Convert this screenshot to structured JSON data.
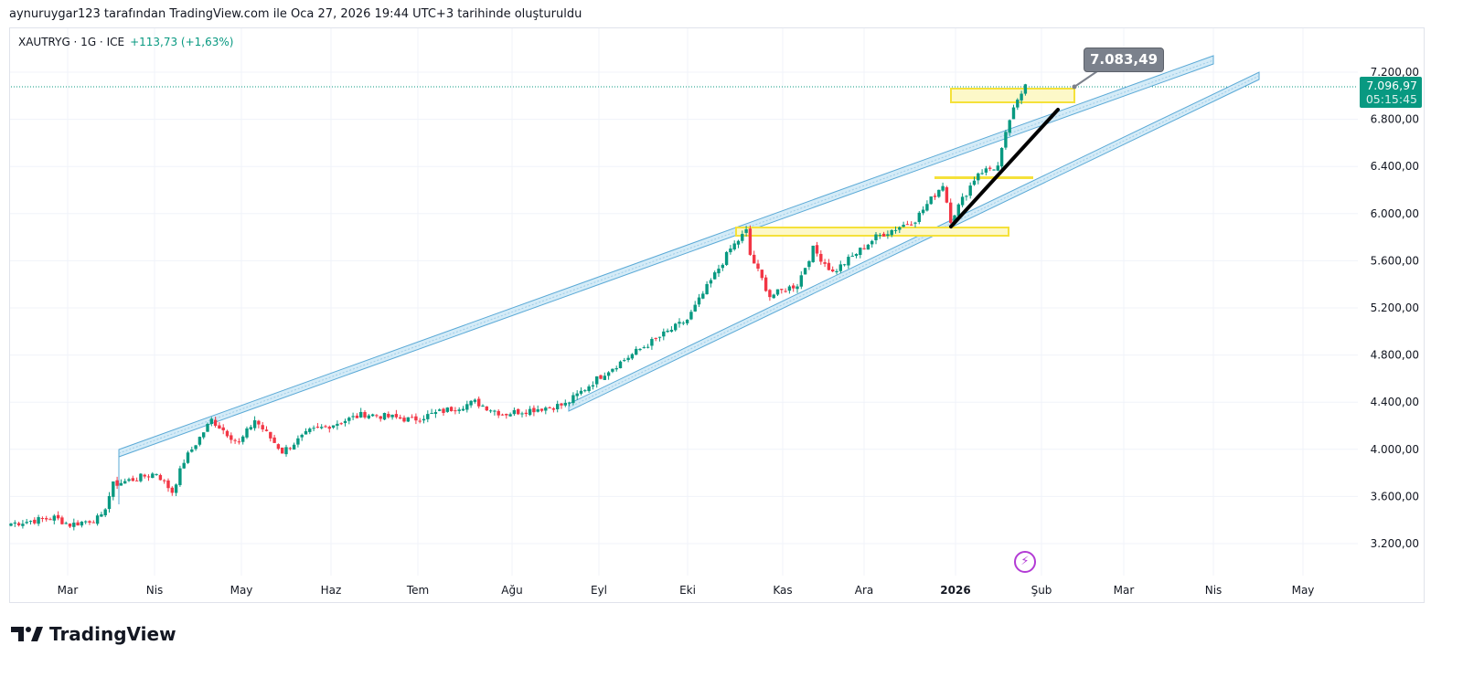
{
  "header": {
    "attribution": "aynuruygar123 tarafından TradingView.com ile Oca 27, 2026 19:44 UTC+3 tarihinde oluşturuldu"
  },
  "legend": {
    "symbol": "XAUTRYG · 1G · ICE",
    "change": "+113,73 (+1,63%)"
  },
  "price_tag": {
    "price": "7.096,97",
    "countdown": "05:15:45"
  },
  "note": {
    "text": "7.083,49"
  },
  "brand": {
    "name": "TradingView"
  },
  "colors": {
    "up": "#089981",
    "down": "#f23645",
    "channel": "#5aa9d6",
    "box": "#f5e13a",
    "trend": "#000000"
  },
  "chart_data": {
    "type": "candlestick",
    "symbol": "XAUTRYG",
    "interval": "1G",
    "y_ticks": [
      "3.200,00",
      "3.600,00",
      "4.000,00",
      "4.400,00",
      "4.800,00",
      "5.200,00",
      "5.600,00",
      "6.000,00",
      "6.400,00",
      "6.800,00",
      "7.200,00"
    ],
    "y_tick_values": [
      3200,
      3600,
      4000,
      4400,
      4800,
      5200,
      5600,
      6000,
      6400,
      6800,
      7200
    ],
    "ylim": [
      2950,
      7400
    ],
    "x_ticks": [
      "Mar",
      "Nis",
      "May",
      "Haz",
      "Tem",
      "Ağu",
      "Eyl",
      "Eki",
      "Kas",
      "Ara",
      "2026",
      "Şub",
      "Mar",
      "Nis",
      "May"
    ],
    "approx_close_path": [
      [
        0,
        3370
      ],
      [
        11,
        3420
      ],
      [
        15,
        3360
      ],
      [
        23,
        3420
      ],
      [
        26,
        3700
      ],
      [
        37,
        3800
      ],
      [
        41,
        3640
      ],
      [
        44,
        3900
      ],
      [
        51,
        4250
      ],
      [
        58,
        4050
      ],
      [
        62,
        4250
      ],
      [
        69,
        3980
      ],
      [
        76,
        4150
      ],
      [
        90,
        4300
      ],
      [
        102,
        4250
      ],
      [
        118,
        4400
      ],
      [
        125,
        4300
      ],
      [
        141,
        4380
      ],
      [
        151,
        4650
      ],
      [
        160,
        4850
      ],
      [
        172,
        5100
      ],
      [
        183,
        5700
      ],
      [
        187,
        5850
      ],
      [
        188,
        5650
      ],
      [
        193,
        5300
      ],
      [
        200,
        5400
      ],
      [
        204,
        5700
      ],
      [
        209,
        5500
      ],
      [
        220,
        5800
      ],
      [
        230,
        5950
      ],
      [
        237,
        6250
      ],
      [
        239,
        5950
      ],
      [
        246,
        6350
      ],
      [
        251,
        6400
      ],
      [
        254,
        6800
      ],
      [
        258,
        7097
      ]
    ],
    "last_price": 7096.97
  }
}
